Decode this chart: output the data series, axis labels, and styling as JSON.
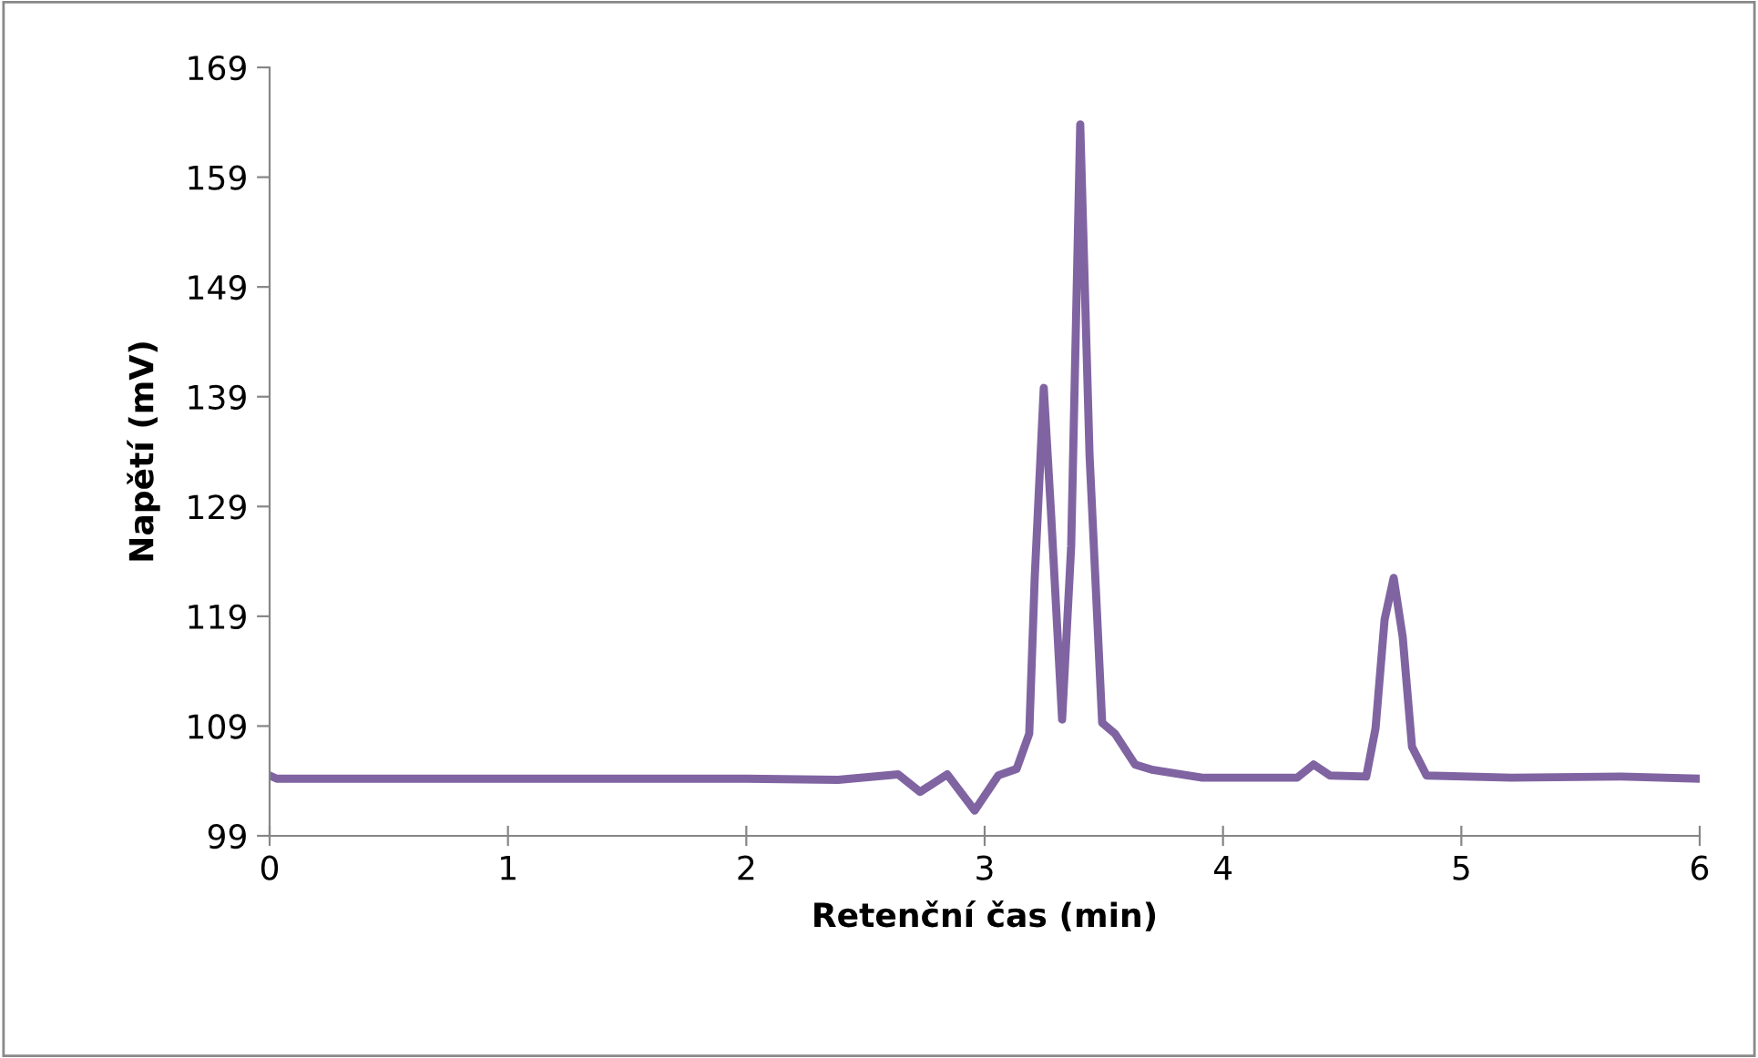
{
  "chart_data": {
    "type": "line",
    "xlabel": "Retenční čas (min)",
    "ylabel": "Napětí (mV)",
    "xlim": [
      0,
      6
    ],
    "xticks": [
      0,
      1,
      2,
      3,
      4,
      5,
      6
    ],
    "ylim": [
      99,
      169
    ],
    "yticks": [
      99,
      109,
      119,
      129,
      139,
      149,
      159,
      169
    ],
    "grid": false,
    "legend": false,
    "marker": "none",
    "line_style": "solid",
    "series": [
      {
        "color": "#8064a2",
        "x": [
          0,
          0.03,
          1.0,
          2.0,
          2.385,
          2.637,
          2.729,
          2.843,
          2.958,
          3.057,
          3.134,
          3.187,
          3.21,
          3.248,
          3.279,
          3.325,
          3.363,
          3.401,
          3.44,
          3.493,
          3.547,
          3.631,
          3.707,
          3.913,
          4.066,
          4.311,
          4.38,
          4.449,
          4.601,
          4.64,
          4.678,
          4.716,
          4.754,
          4.793,
          4.854,
          5.21,
          5.67,
          6.0
        ],
        "values": [
          104.5,
          104.2,
          104.2,
          104.2,
          104.1,
          104.6,
          103.0,
          104.6,
          101.3,
          104.5,
          105.1,
          108.3,
          122.5,
          139.8,
          128.2,
          109.6,
          125.4,
          163.8,
          133.7,
          109.3,
          108.3,
          105.5,
          105.0,
          104.3,
          104.3,
          104.3,
          105.5,
          104.5,
          104.4,
          108.8,
          118.7,
          122.5,
          117.1,
          107.1,
          104.5,
          104.3,
          104.4,
          104.2
        ]
      }
    ]
  }
}
